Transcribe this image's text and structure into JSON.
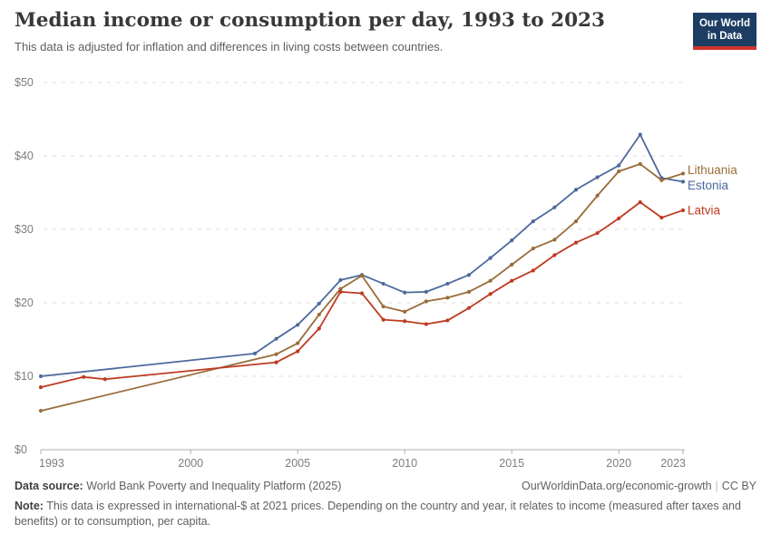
{
  "header": {
    "title": "Median income or consumption per day, 1993 to 2023",
    "subtitle": "This data is adjusted for inflation and differences in living costs between countries.",
    "logo": {
      "line1": "Our World",
      "line2": "in Data",
      "bg_color": "#1d3d63",
      "accent_color": "#d0342c"
    }
  },
  "chart_data": {
    "type": "line",
    "title": "Median income or consumption per day, 1993 to 2023",
    "xlabel": "",
    "ylabel": "",
    "xlim": [
      1993,
      2023
    ],
    "ylim": [
      0,
      50
    ],
    "grid": true,
    "gridline_style": "dashed",
    "legend_position": "right-end-labels",
    "x_ticks": [
      1993,
      2000,
      2005,
      2010,
      2015,
      2020,
      2023
    ],
    "y_ticks": [
      {
        "value": 0,
        "label": "$0"
      },
      {
        "value": 10,
        "label": "$10"
      },
      {
        "value": 20,
        "label": "$20"
      },
      {
        "value": 30,
        "label": "$30"
      },
      {
        "value": 40,
        "label": "$40"
      },
      {
        "value": 50,
        "label": "$50"
      }
    ],
    "series": [
      {
        "name": "Estonia",
        "color": "#4C6A9C",
        "points": [
          [
            1993,
            10.0
          ],
          [
            2003,
            13.1
          ],
          [
            2004,
            15.1
          ],
          [
            2005,
            17.0
          ],
          [
            2006,
            19.9
          ],
          [
            2007,
            23.1
          ],
          [
            2008,
            23.8
          ],
          [
            2009,
            22.6
          ],
          [
            2010,
            21.4
          ],
          [
            2011,
            21.5
          ],
          [
            2012,
            22.6
          ],
          [
            2013,
            23.8
          ],
          [
            2014,
            26.1
          ],
          [
            2015,
            28.5
          ],
          [
            2016,
            31.1
          ],
          [
            2017,
            33.0
          ],
          [
            2018,
            35.4
          ],
          [
            2019,
            37.1
          ],
          [
            2020,
            38.7
          ],
          [
            2021,
            42.9
          ],
          [
            2022,
            37.0
          ],
          [
            2023,
            36.5
          ]
        ]
      },
      {
        "name": "Lithuania",
        "color": "#996D39",
        "points": [
          [
            1993,
            5.3
          ],
          [
            2004,
            13.0
          ],
          [
            2005,
            14.5
          ],
          [
            2006,
            18.4
          ],
          [
            2007,
            21.9
          ],
          [
            2008,
            23.7
          ],
          [
            2009,
            19.5
          ],
          [
            2010,
            18.8
          ],
          [
            2011,
            20.2
          ],
          [
            2012,
            20.7
          ],
          [
            2013,
            21.5
          ],
          [
            2014,
            23.0
          ],
          [
            2015,
            25.2
          ],
          [
            2016,
            27.4
          ],
          [
            2017,
            28.6
          ],
          [
            2018,
            31.1
          ],
          [
            2019,
            34.6
          ],
          [
            2020,
            37.9
          ],
          [
            2021,
            38.9
          ],
          [
            2022,
            36.7
          ],
          [
            2023,
            37.6
          ]
        ]
      },
      {
        "name": "Latvia",
        "color": "#BE3B22",
        "points": [
          [
            1993,
            8.5
          ],
          [
            1995,
            9.9
          ],
          [
            1996,
            9.6
          ],
          [
            2004,
            11.9
          ],
          [
            2005,
            13.4
          ],
          [
            2006,
            16.5
          ],
          [
            2007,
            21.5
          ],
          [
            2008,
            21.3
          ],
          [
            2009,
            17.7
          ],
          [
            2010,
            17.5
          ],
          [
            2011,
            17.1
          ],
          [
            2012,
            17.6
          ],
          [
            2013,
            19.3
          ],
          [
            2014,
            21.2
          ],
          [
            2015,
            23.0
          ],
          [
            2016,
            24.4
          ],
          [
            2017,
            26.5
          ],
          [
            2018,
            28.2
          ],
          [
            2019,
            29.5
          ],
          [
            2020,
            31.5
          ],
          [
            2021,
            33.7
          ],
          [
            2022,
            31.6
          ],
          [
            2023,
            32.6
          ]
        ]
      }
    ]
  },
  "footer": {
    "data_source_label": "Data source:",
    "data_source": "World Bank Poverty and Inequality Platform (2025)",
    "credit_url": "OurWorldinData.org/economic-growth",
    "license": "CC BY",
    "note_label": "Note:",
    "note": "This data is expressed in international-$ at 2021 prices. Depending on the country and year, it relates to income (measured after taxes and benefits) or to consumption, per capita."
  }
}
